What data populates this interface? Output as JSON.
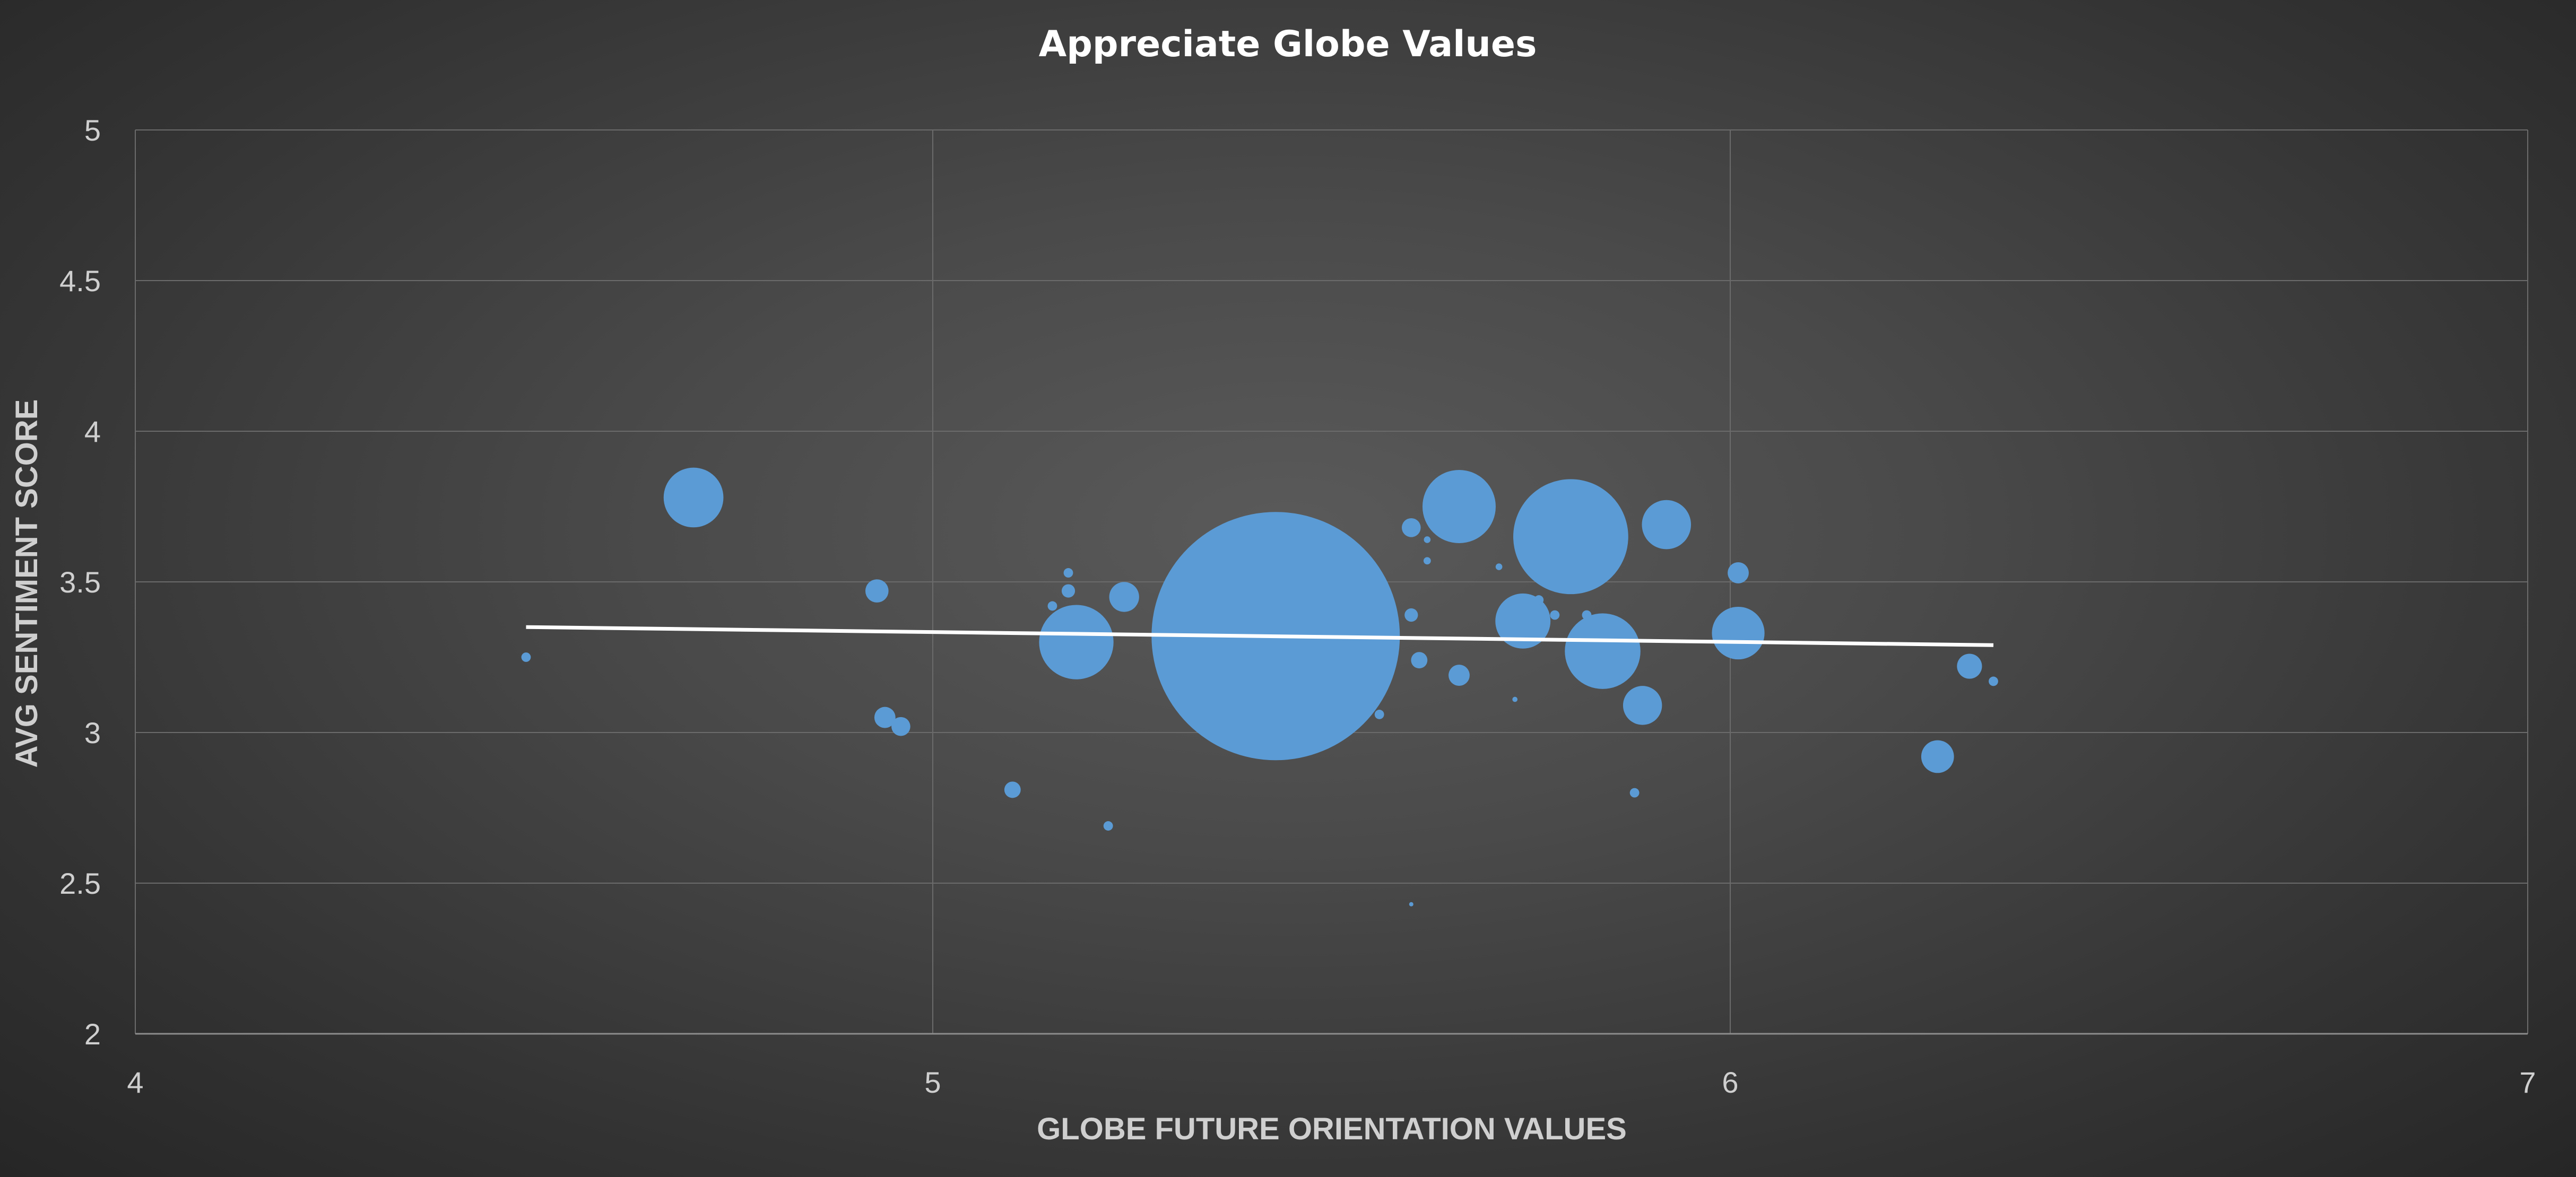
{
  "chart_data": {
    "type": "scatter",
    "subtype": "bubble",
    "title": "Appreciate Globe Values",
    "xlabel": "GLOBE FUTURE ORIENTATION VALUES",
    "ylabel": "AVG SENTIMENT SCORE",
    "xlim": [
      4,
      7
    ],
    "ylim": [
      2,
      5
    ],
    "x_ticks": [
      4,
      5,
      6,
      7
    ],
    "y_ticks": [
      2,
      2.5,
      3,
      3.5,
      4,
      4.5,
      5
    ],
    "grid": true,
    "legend": "none",
    "colors": {
      "bubble": "#5b9bd5",
      "trendline": "#ffffff"
    },
    "trendline": {
      "type": "linear",
      "points": [
        [
          4.49,
          3.35
        ],
        [
          6.33,
          3.29
        ]
      ]
    },
    "points": [
      {
        "x": 4.49,
        "y": 3.25,
        "size": 1
      },
      {
        "x": 4.7,
        "y": 3.78,
        "size": 40
      },
      {
        "x": 4.93,
        "y": 3.47,
        "size": 6
      },
      {
        "x": 4.94,
        "y": 3.05,
        "size": 5
      },
      {
        "x": 4.96,
        "y": 3.02,
        "size": 4
      },
      {
        "x": 5.1,
        "y": 2.81,
        "size": 3
      },
      {
        "x": 5.15,
        "y": 3.42,
        "size": 1
      },
      {
        "x": 5.17,
        "y": 3.53,
        "size": 1
      },
      {
        "x": 5.17,
        "y": 3.47,
        "size": 2
      },
      {
        "x": 5.18,
        "y": 3.3,
        "size": 62
      },
      {
        "x": 5.22,
        "y": 2.69,
        "size": 1
      },
      {
        "x": 5.24,
        "y": 3.45,
        "size": 10
      },
      {
        "x": 5.43,
        "y": 3.32,
        "size": 690
      },
      {
        "x": 5.56,
        "y": 3.06,
        "size": 1
      },
      {
        "x": 5.6,
        "y": 3.68,
        "size": 4
      },
      {
        "x": 5.6,
        "y": 3.39,
        "size": 2
      },
      {
        "x": 5.6,
        "y": 2.43,
        "size": 0.1
      },
      {
        "x": 5.61,
        "y": 3.24,
        "size": 3
      },
      {
        "x": 5.62,
        "y": 3.64,
        "size": 0.5
      },
      {
        "x": 5.62,
        "y": 3.57,
        "size": 0.6
      },
      {
        "x": 5.66,
        "y": 3.75,
        "size": 60
      },
      {
        "x": 5.66,
        "y": 3.19,
        "size": 5
      },
      {
        "x": 5.71,
        "y": 3.55,
        "size": 0.5
      },
      {
        "x": 5.73,
        "y": 3.11,
        "size": 0.3
      },
      {
        "x": 5.74,
        "y": 3.37,
        "size": 34
      },
      {
        "x": 5.76,
        "y": 3.44,
        "size": 1
      },
      {
        "x": 5.78,
        "y": 3.39,
        "size": 1
      },
      {
        "x": 5.8,
        "y": 3.65,
        "size": 148
      },
      {
        "x": 5.82,
        "y": 3.39,
        "size": 1
      },
      {
        "x": 5.84,
        "y": 3.27,
        "size": 64
      },
      {
        "x": 5.88,
        "y": 2.8,
        "size": 1
      },
      {
        "x": 5.89,
        "y": 3.09,
        "size": 17
      },
      {
        "x": 5.92,
        "y": 3.69,
        "size": 27
      },
      {
        "x": 6.01,
        "y": 3.53,
        "size": 5
      },
      {
        "x": 6.01,
        "y": 3.33,
        "size": 31
      },
      {
        "x": 6.26,
        "y": 2.92,
        "size": 12
      },
      {
        "x": 6.3,
        "y": 3.22,
        "size": 7
      },
      {
        "x": 6.33,
        "y": 3.17,
        "size": 1
      }
    ]
  }
}
